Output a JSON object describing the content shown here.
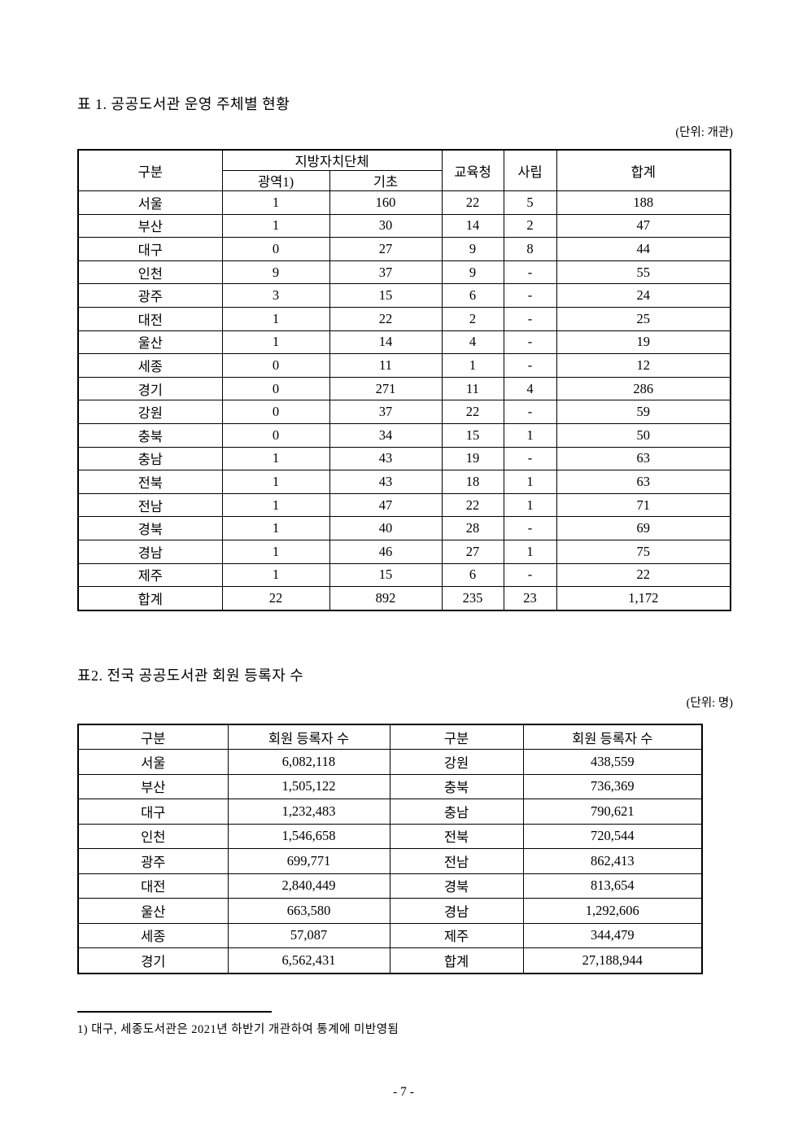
{
  "table1": {
    "title": "표 1. 공공도서관 운영 주체별 현황",
    "unit": "(단위: 개관)",
    "header": {
      "gubun": "구분",
      "local_government_group": "지방자치단체",
      "gwangyeok": "광역",
      "gwangyeok_footnote_marker": "1)",
      "gicho": "기초",
      "education_office": "교육청",
      "private": "사립",
      "total": "합계"
    },
    "rows": [
      [
        "서울",
        "1",
        "160",
        "22",
        "5",
        "188"
      ],
      [
        "부산",
        "1",
        "30",
        "14",
        "2",
        "47"
      ],
      [
        "대구",
        "0",
        "27",
        "9",
        "8",
        "44"
      ],
      [
        "인천",
        "9",
        "37",
        "9",
        "-",
        "55"
      ],
      [
        "광주",
        "3",
        "15",
        "6",
        "-",
        "24"
      ],
      [
        "대전",
        "1",
        "22",
        "2",
        "-",
        "25"
      ],
      [
        "울산",
        "1",
        "14",
        "4",
        "-",
        "19"
      ],
      [
        "세종",
        "0",
        "11",
        "1",
        "-",
        "12"
      ],
      [
        "경기",
        "0",
        "271",
        "11",
        "4",
        "286"
      ],
      [
        "강원",
        "0",
        "37",
        "22",
        "-",
        "59"
      ],
      [
        "충북",
        "0",
        "34",
        "15",
        "1",
        "50"
      ],
      [
        "충남",
        "1",
        "43",
        "19",
        "-",
        "63"
      ],
      [
        "전북",
        "1",
        "43",
        "18",
        "1",
        "63"
      ],
      [
        "전남",
        "1",
        "47",
        "22",
        "1",
        "71"
      ],
      [
        "경북",
        "1",
        "40",
        "28",
        "-",
        "69"
      ],
      [
        "경남",
        "1",
        "46",
        "27",
        "1",
        "75"
      ],
      [
        "제주",
        "1",
        "15",
        "6",
        "-",
        "22"
      ],
      [
        "합계",
        "22",
        "892",
        "235",
        "23",
        "1,172"
      ]
    ]
  },
  "table2": {
    "title": "표2. 전국 공공도서관 회원 등록자 수",
    "unit": "(단위: 명)",
    "header": [
      "구분",
      "회원 등록자 수",
      "구분",
      "회원 등록자 수"
    ],
    "rows": [
      [
        "서울",
        "6,082,118",
        "강원",
        "438,559"
      ],
      [
        "부산",
        "1,505,122",
        "충북",
        "736,369"
      ],
      [
        "대구",
        "1,232,483",
        "충남",
        "790,621"
      ],
      [
        "인천",
        "1,546,658",
        "전북",
        "720,544"
      ],
      [
        "광주",
        "699,771",
        "전남",
        "862,413"
      ],
      [
        "대전",
        "2,840,449",
        "경북",
        "813,654"
      ],
      [
        "울산",
        "663,580",
        "경남",
        "1,292,606"
      ],
      [
        "세종",
        "57,087",
        "제주",
        "344,479"
      ],
      [
        "경기",
        "6,562,431",
        "합계",
        "27,188,944"
      ]
    ]
  },
  "footnote": "1) 대구, 세종도서관은 2021년 하반기 개관하여 통계에 미반영됨",
  "page_number": "- 7 -"
}
